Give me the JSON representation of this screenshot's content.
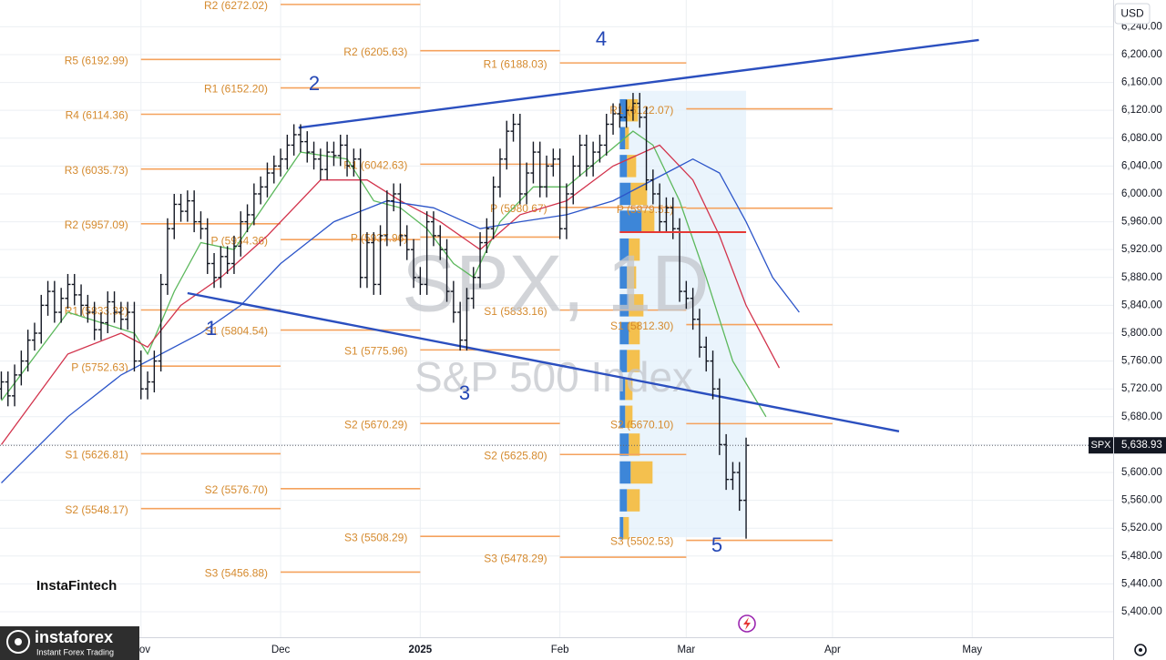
{
  "chart_data": {
    "type": "ohlc",
    "symbol": "SPX",
    "watermark": [
      "SPX, 1D",
      "S&P 500 Index"
    ],
    "currency": "USD",
    "xlim": [
      -0.2,
      167.2
    ],
    "ylim": [
      5363.4,
      6278.4
    ],
    "xticks": [
      {
        "value": 21,
        "label": "Nov"
      },
      {
        "value": 42,
        "label": "Dec"
      },
      {
        "value": 63,
        "label": "2025"
      },
      {
        "value": 84,
        "label": "Feb"
      },
      {
        "value": 103,
        "label": "Mar"
      },
      {
        "value": 125,
        "label": "Apr"
      },
      {
        "value": 146,
        "label": "May"
      }
    ],
    "yticks": [
      {
        "value": 5400,
        "label": "5,400.00"
      },
      {
        "value": 5440,
        "label": "5,440.00"
      },
      {
        "value": 5480,
        "label": "5,480.00"
      },
      {
        "value": 5520,
        "label": "5,520.00"
      },
      {
        "value": 5560,
        "label": "5,560.00"
      },
      {
        "value": 5600,
        "label": "5,600.00"
      },
      {
        "value": 5640,
        "label": "5,640.00"
      },
      {
        "value": 5680,
        "label": "5,680.00"
      },
      {
        "value": 5720,
        "label": "5,720.00"
      },
      {
        "value": 5760,
        "label": "5,760.00"
      },
      {
        "value": 5800,
        "label": "5,800.00"
      },
      {
        "value": 5840,
        "label": "5,840.00"
      },
      {
        "value": 5880,
        "label": "5,880.00"
      },
      {
        "value": 5920,
        "label": "5,920.00"
      },
      {
        "value": 5960,
        "label": "5,960.00"
      },
      {
        "value": 6000,
        "label": "6,000.00"
      },
      {
        "value": 6040,
        "label": "6,040.00"
      },
      {
        "value": 6080,
        "label": "6,080.00"
      },
      {
        "value": 6120,
        "label": "6,120.00"
      },
      {
        "value": 6160,
        "label": "6,160.00"
      },
      {
        "value": 6200,
        "label": "6,200.00"
      },
      {
        "value": 6240,
        "label": "6,240.00"
      }
    ],
    "grid": true,
    "bar_color": "#131722",
    "open": [
      5720,
      5730,
      5710,
      5740,
      5760,
      5790,
      5800,
      5840,
      5860,
      5830,
      5850,
      5870,
      5855,
      5840,
      5830,
      5805,
      5815,
      5845,
      5830,
      5820,
      5830,
      5760,
      5720,
      5730,
      5760,
      5870,
      5950,
      5985,
      5975,
      5990,
      5960,
      5950,
      5900,
      5880,
      5910,
      5900,
      5925,
      5960,
      5970,
      6000,
      6010,
      6030,
      6040,
      6050,
      6070,
      6085,
      6075,
      6060,
      6050,
      6035,
      6060,
      6055,
      6070,
      6040,
      6050,
      5880,
      5930,
      5870,
      5940,
      5990,
      6000,
      5940,
      5920,
      5880,
      5870,
      5960,
      5940,
      5920,
      5860,
      5830,
      5790,
      5850,
      5880,
      5930,
      5950,
      6010,
      6050,
      6090,
      6100,
      6000,
      6030,
      6060,
      6010,
      6040,
      6050,
      5950,
      6000,
      6040,
      6070,
      6040,
      6060,
      6070,
      6100,
      6115,
      6110,
      6120,
      6130,
      6110,
      6020,
      6000,
      5960,
      5980,
      5950,
      5860,
      5850,
      5820,
      5780,
      5760,
      5720,
      5640,
      5590,
      5600,
      5560
    ],
    "high": [
      5745,
      5745,
      5755,
      5775,
      5805,
      5815,
      5855,
      5875,
      5875,
      5865,
      5885,
      5885,
      5870,
      5855,
      5845,
      5830,
      5860,
      5860,
      5845,
      5845,
      5845,
      5775,
      5745,
      5775,
      5885,
      5965,
      6000,
      6000,
      6005,
      6005,
      5975,
      5965,
      5915,
      5925,
      5925,
      5940,
      5975,
      5985,
      6015,
      6025,
      6045,
      6055,
      6065,
      6085,
      6100,
      6100,
      6090,
      6075,
      6065,
      6075,
      6075,
      6085,
      6085,
      6065,
      6065,
      5945,
      5945,
      5955,
      6005,
      6015,
      6015,
      5955,
      5935,
      5895,
      5975,
      5975,
      5955,
      5935,
      5875,
      5845,
      5865,
      5895,
      5945,
      5965,
      6025,
      6065,
      6105,
      6115,
      6115,
      6045,
      6075,
      6075,
      6055,
      6065,
      6065,
      6015,
      6055,
      6085,
      6085,
      6075,
      6085,
      6115,
      6130,
      6130,
      6135,
      6145,
      6145,
      6125,
      6035,
      6015,
      5995,
      5995,
      5965,
      5875,
      5865,
      5835,
      5795,
      5775,
      5735,
      5655,
      5615,
      5615,
      5650
    ],
    "low": [
      5705,
      5695,
      5695,
      5725,
      5745,
      5775,
      5785,
      5825,
      5815,
      5815,
      5835,
      5840,
      5825,
      5815,
      5790,
      5790,
      5800,
      5815,
      5805,
      5805,
      5745,
      5705,
      5705,
      5715,
      5745,
      5855,
      5935,
      5960,
      5960,
      5945,
      5935,
      5885,
      5865,
      5865,
      5885,
      5885,
      5910,
      5945,
      5955,
      5985,
      5995,
      6015,
      6025,
      6035,
      6055,
      6060,
      6045,
      6035,
      6020,
      6020,
      6040,
      6040,
      6025,
      6025,
      5865,
      5865,
      5855,
      5855,
      5925,
      5975,
      5925,
      5905,
      5865,
      5855,
      5855,
      5925,
      5905,
      5845,
      5815,
      5775,
      5775,
      5835,
      5865,
      5915,
      5935,
      5995,
      6035,
      6075,
      5985,
      5985,
      6015,
      5995,
      5995,
      6025,
      5935,
      5935,
      5985,
      6025,
      6025,
      6025,
      6045,
      6055,
      6085,
      6095,
      6095,
      6105,
      6095,
      6005,
      5985,
      5945,
      5945,
      5935,
      5845,
      5835,
      5805,
      5765,
      5745,
      5705,
      5625,
      5575,
      5575,
      5545,
      5505
    ],
    "close": [
      5730,
      5710,
      5740,
      5760,
      5790,
      5800,
      5840,
      5860,
      5830,
      5850,
      5870,
      5855,
      5840,
      5830,
      5805,
      5815,
      5845,
      5830,
      5820,
      5830,
      5760,
      5720,
      5730,
      5760,
      5870,
      5950,
      5985,
      5975,
      5990,
      5960,
      5950,
      5900,
      5880,
      5910,
      5900,
      5925,
      5960,
      5970,
      6000,
      6010,
      6030,
      6040,
      6050,
      6070,
      6085,
      6075,
      6060,
      6050,
      6035,
      6060,
      6055,
      6070,
      6040,
      6050,
      5880,
      5930,
      5870,
      5940,
      5990,
      6000,
      5940,
      5920,
      5880,
      5870,
      5960,
      5940,
      5920,
      5860,
      5830,
      5790,
      5850,
      5880,
      5930,
      5950,
      6010,
      6050,
      6090,
      6100,
      6000,
      6030,
      6060,
      6010,
      6040,
      6050,
      5950,
      6000,
      6040,
      6070,
      6040,
      6060,
      6070,
      6100,
      6115,
      6110,
      6120,
      6130,
      6110,
      6020,
      6000,
      5960,
      5980,
      5950,
      5860,
      5850,
      5820,
      5780,
      5760,
      5720,
      5640,
      5590,
      5600,
      5560,
      5638.93
    ],
    "last_price": {
      "value": 5638.93,
      "label": "5,638.93"
    },
    "moving_averages": [
      {
        "color": "#5cb85c",
        "x": [
          0,
          10,
          20,
          22,
          26,
          30,
          35,
          40,
          45,
          52,
          56,
          60,
          64,
          68,
          71,
          75,
          80,
          85,
          90,
          95,
          98,
          102,
          106,
          110,
          115
        ],
        "values": [
          5703,
          5830,
          5800,
          5770,
          5860,
          5930,
          5920,
          5990,
          6060,
          6050,
          5990,
          5980,
          5950,
          5900,
          5880,
          5960,
          6010,
          6010,
          6050,
          6090,
          6070,
          5990,
          5880,
          5760,
          5680
        ]
      },
      {
        "color": "#d2334c",
        "x": [
          0,
          10,
          18,
          22,
          27,
          33,
          40,
          48,
          55,
          60,
          66,
          72,
          78,
          85,
          92,
          99,
          104,
          108,
          112,
          117
        ],
        "values": [
          5640,
          5770,
          5800,
          5780,
          5840,
          5880,
          5940,
          6020,
          6020,
          5990,
          5960,
          5920,
          5970,
          5990,
          6040,
          6070,
          6020,
          5940,
          5840,
          5750
        ]
      },
      {
        "color": "#2c55c9",
        "x": [
          0,
          10,
          18,
          24,
          30,
          36,
          42,
          50,
          58,
          65,
          72,
          78,
          85,
          92,
          100,
          104,
          108,
          112,
          116,
          120
        ],
        "values": [
          5585,
          5680,
          5740,
          5770,
          5800,
          5840,
          5900,
          5960,
          5990,
          5980,
          5950,
          5960,
          5970,
          5990,
          6030,
          6050,
          6030,
          5960,
          5880,
          5830
        ]
      }
    ],
    "pivot_color": "#f5a25d",
    "pivots": [
      {
        "levels": [
          {
            "label": "R5 (6192.99)",
            "value": 6192.99
          },
          {
            "label": "R4 (6114.36)",
            "value": 6114.36
          },
          {
            "label": "R3 (6035.73)",
            "value": 6035.73
          },
          {
            "label": "R2 (5957.09)",
            "value": 5957.09
          },
          {
            "label": "R1 (5833.32)",
            "value": 5833.32
          },
          {
            "label": "P (5752.63)",
            "value": 5752.63
          },
          {
            "label": "S1 (5626.81)",
            "value": 5626.81
          },
          {
            "label": "S2 (5548.17)",
            "value": 5548.17
          }
        ]
      },
      {
        "levels": [
          {
            "label": "R2 (6272.02)",
            "value": 6272.02
          },
          {
            "label": "R1 (6152.20)",
            "value": 6152.2
          },
          {
            "label": "P (5934.36)",
            "value": 5934.36
          },
          {
            "label": "S1 (5804.54)",
            "value": 5804.54
          },
          {
            "label": "S2 (5576.70)",
            "value": 5576.7
          },
          {
            "label": "S3 (5456.88)",
            "value": 5456.88
          }
        ]
      },
      {
        "levels": [
          {
            "label": "R2 (6205.63)",
            "value": 6205.63
          },
          {
            "label": "R1 (6042.63)",
            "value": 6042.63
          },
          {
            "label": "P (5937.96)",
            "value": 5937.96
          },
          {
            "label": "S1 (5775.96)",
            "value": 5775.96
          },
          {
            "label": "S2 (5670.29)",
            "value": 5670.29
          },
          {
            "label": "S3 (5508.29)",
            "value": 5508.29
          }
        ]
      },
      {
        "levels": [
          {
            "label": "R1 (6188.03)",
            "value": 6188.03
          },
          {
            "label": "P (5980.67)",
            "value": 5980.67
          },
          {
            "label": "S1 (5833.16)",
            "value": 5833.16
          },
          {
            "label": "S2 (5625.80)",
            "value": 5625.8
          },
          {
            "label": "S3 (5478.29)",
            "value": 5478.29
          }
        ]
      },
      {
        "levels": [
          {
            "label": "R1 (6122.07)",
            "value": 6122.07
          },
          {
            "label": "P (5979.51)",
            "value": 5979.51
          },
          {
            "label": "S1 (5812.30)",
            "value": 5812.3
          },
          {
            "label": "S2 (5670.10)",
            "value": 5670.1
          },
          {
            "label": "S3 (5502.53)",
            "value": 5502.53
          }
        ]
      }
    ],
    "trendline_color": "#2b4fbf",
    "trendlines": [
      {
        "x": [
          44.7,
          147
        ],
        "y": [
          6095,
          6221
        ]
      },
      {
        "x": [
          28,
          135
        ],
        "y": [
          5857.5,
          5659
        ]
      }
    ],
    "wave_labels": [
      "1",
      "2",
      "3",
      "4",
      "5"
    ],
    "volume_profile": {
      "x": [
        93,
        112
      ],
      "y": [
        5507,
        6148
      ],
      "bins": [
        5500,
        5540,
        5580,
        5620,
        5660,
        5700,
        5740,
        5780,
        5820,
        5860,
        5900,
        5940,
        5980,
        6020,
        6060,
        6100,
        6140
      ],
      "up": [
        2,
        4,
        6,
        5,
        3,
        3,
        4,
        5,
        5,
        4,
        5,
        12,
        6,
        4,
        3,
        4
      ],
      "down": [
        3,
        7,
        12,
        6,
        4,
        4,
        7,
        6,
        8,
        5,
        6,
        7,
        9,
        5,
        2,
        6
      ],
      "up_color": "#3d86d8",
      "down_color": "#f4c04e",
      "poc": 5945,
      "poc_color": "#e53935"
    }
  },
  "branding": {
    "fintech": "InstaFintech",
    "name": "instaforex",
    "tagline": "Instant Forex Trading"
  }
}
